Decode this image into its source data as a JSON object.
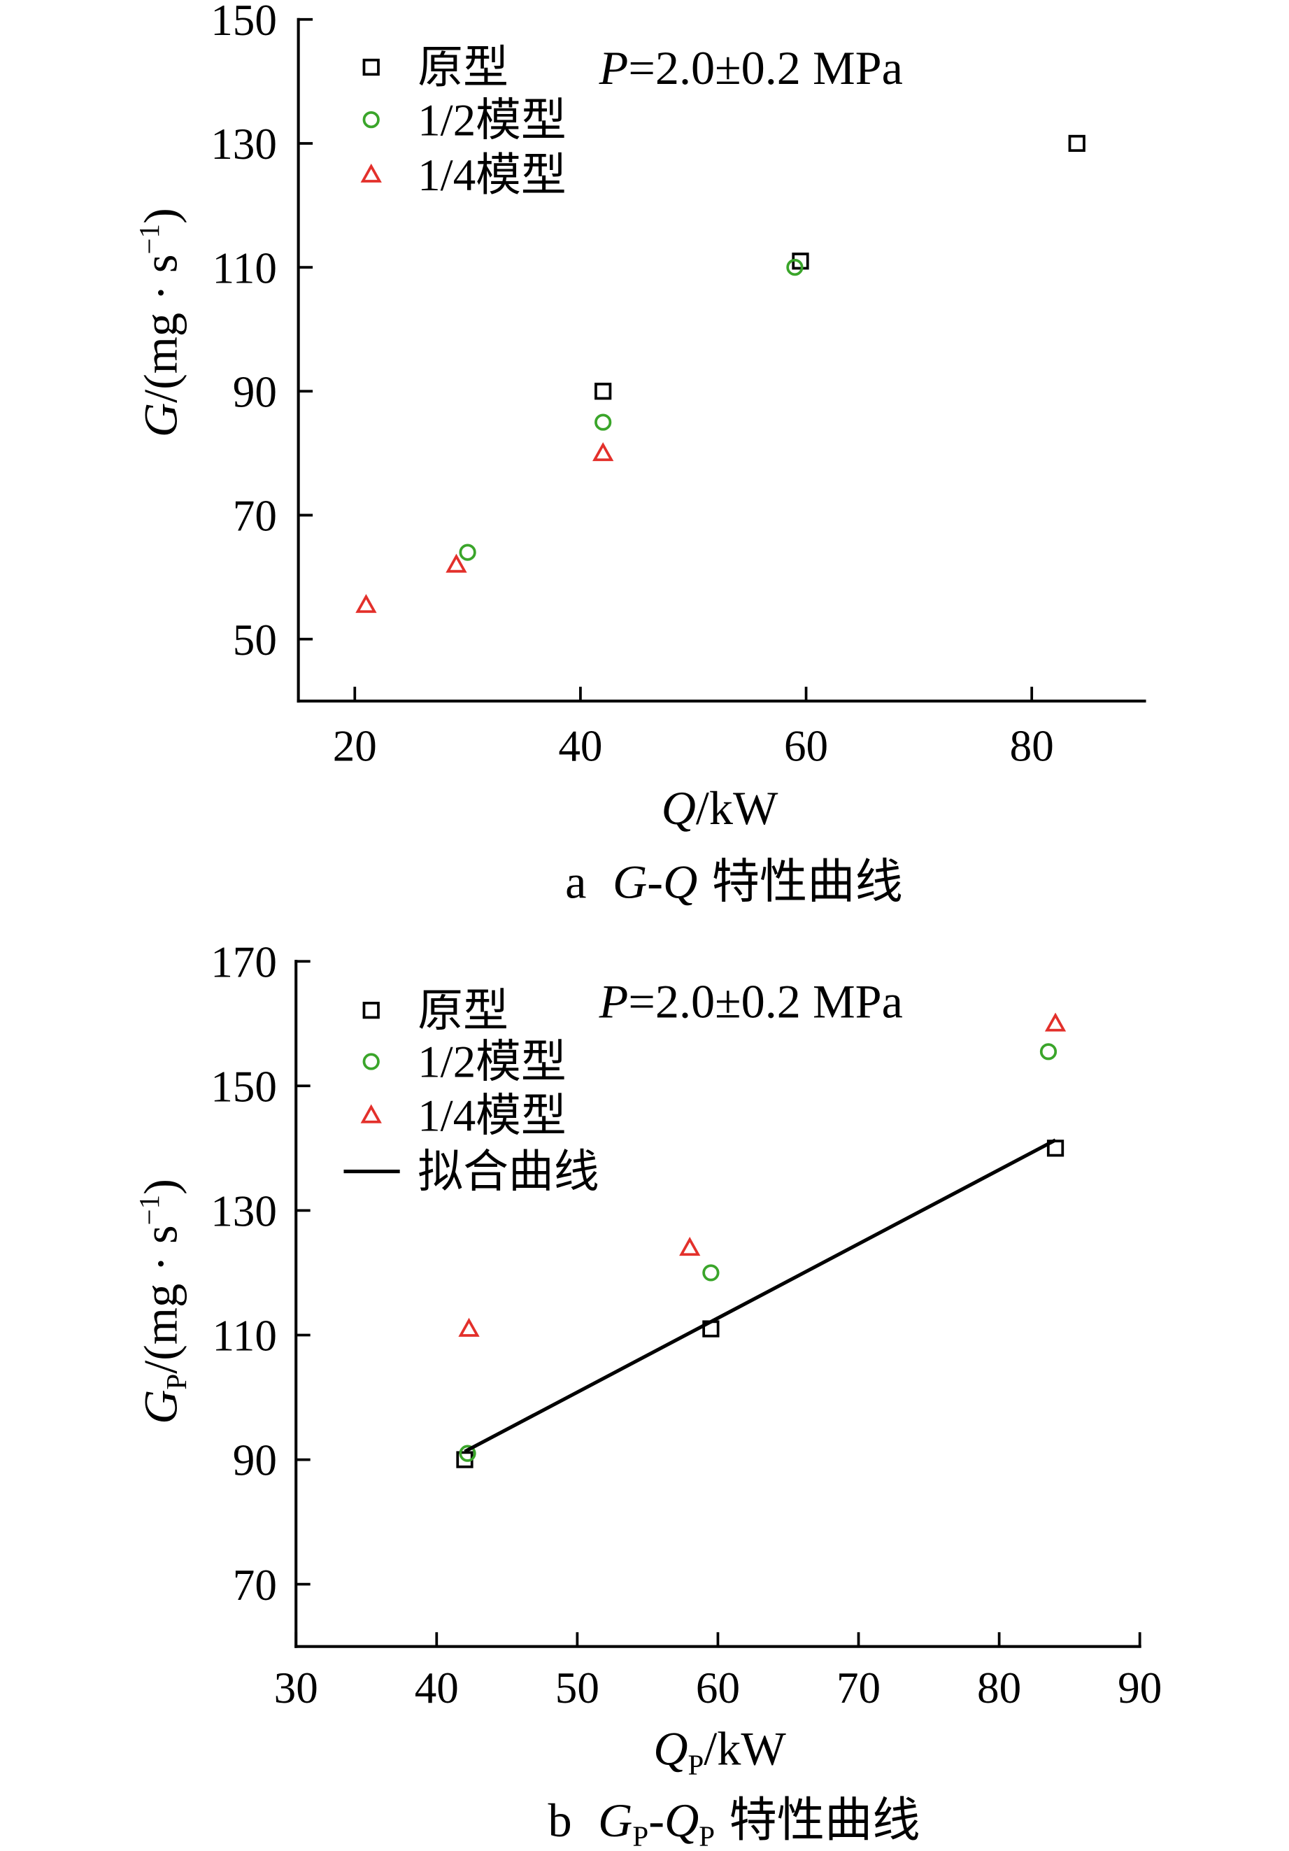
{
  "chart_data": [
    {
      "type": "scatter",
      "caption": {
        "letter": "a",
        "symbol1": "G",
        "dash": "-",
        "symbol2": "Q",
        "text": "特性曲线"
      },
      "xlabel": {
        "symbol": "Q",
        "unit": "/kW"
      },
      "ylabel": {
        "symbol": "G",
        "unit": "/(mg · s",
        "sup": "−1",
        "end": ")"
      },
      "annotation": {
        "symbol": "P",
        "text": "=2.0±0.2 MPa"
      },
      "xlim": [
        15,
        90
      ],
      "ylim": [
        40,
        150
      ],
      "xticks": [
        20,
        40,
        60,
        80
      ],
      "yticks": [
        50,
        70,
        90,
        110,
        130,
        150
      ],
      "grid": false,
      "legend_position": "top-left",
      "series": [
        {
          "name": "原型",
          "marker": "square",
          "color": "#000000",
          "points": [
            [
              42,
              90
            ],
            [
              59.5,
              111
            ],
            [
              84,
              130
            ]
          ]
        },
        {
          "name": "1/2模型",
          "marker": "circle",
          "color": "#3aa52a",
          "points": [
            [
              30,
              64
            ],
            [
              42,
              85
            ],
            [
              59,
              110
            ]
          ]
        },
        {
          "name": "1/4模型",
          "marker": "triangle",
          "color": "#e3302b",
          "points": [
            [
              21,
              55.5
            ],
            [
              29,
              62
            ],
            [
              42,
              80
            ]
          ]
        }
      ]
    },
    {
      "type": "scatter",
      "caption": {
        "letter": "b",
        "symbol1": "G",
        "sub1": "P",
        "dash": "-",
        "symbol2": "Q",
        "sub2": "P",
        "text": "特性曲线"
      },
      "xlabel": {
        "symbol": "Q",
        "sub": "P",
        "unit": "/kW"
      },
      "ylabel": {
        "symbol": "G",
        "sub": "P",
        "unit": "/(mg · s",
        "sup": "−1",
        "end": ")"
      },
      "annotation": {
        "symbol": "P",
        "text": "=2.0±0.2 MPa"
      },
      "xlim": [
        30,
        90
      ],
      "ylim": [
        60,
        170
      ],
      "xticks": [
        30,
        40,
        50,
        60,
        70,
        80,
        90
      ],
      "yticks": [
        70,
        90,
        110,
        130,
        150,
        170
      ],
      "grid": false,
      "legend_position": "top-left",
      "series": [
        {
          "name": "原型",
          "marker": "square",
          "color": "#000000",
          "points": [
            [
              42,
              90
            ],
            [
              59.5,
              111
            ],
            [
              84,
              140
            ]
          ]
        },
        {
          "name": "1/2模型",
          "marker": "circle",
          "color": "#3aa52a",
          "points": [
            [
              42.2,
              91
            ],
            [
              59.5,
              120
            ],
            [
              83.5,
              155.5
            ]
          ]
        },
        {
          "name": "1/4模型",
          "marker": "triangle",
          "color": "#e3302b",
          "points": [
            [
              42.3,
              111
            ],
            [
              58,
              124
            ],
            [
              84,
              160
            ]
          ]
        },
        {
          "name": "拟合曲线",
          "type": "line",
          "color": "#000000",
          "points": [
            [
              42,
              91.3
            ],
            [
              84,
              141.3
            ]
          ]
        }
      ]
    }
  ]
}
